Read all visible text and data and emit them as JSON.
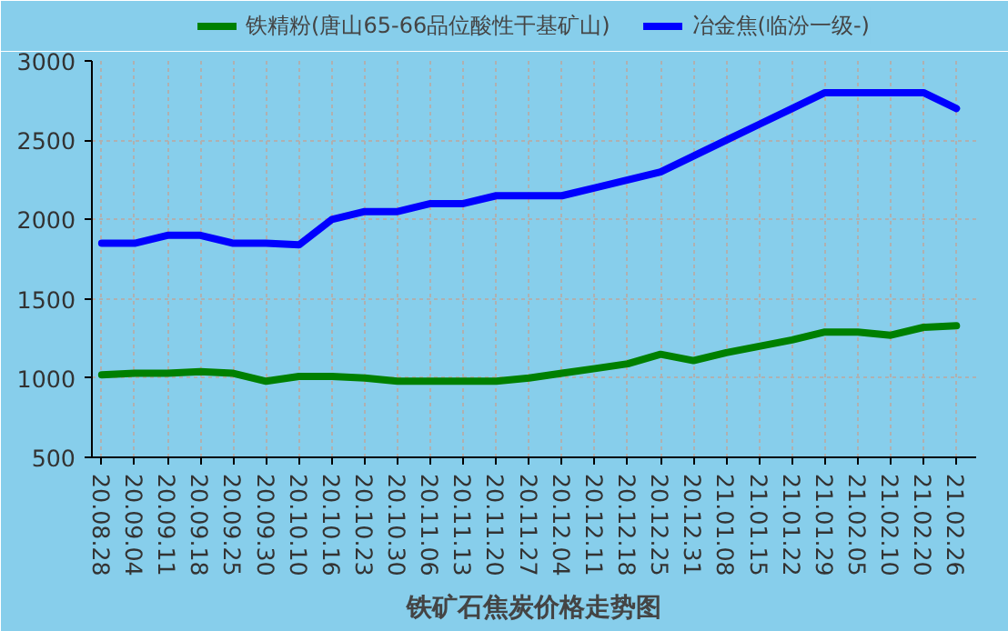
{
  "chart_data": {
    "type": "line",
    "title": "铁矿石焦炭价格走势图",
    "categories": [
      "20.08.28",
      "20.09.04",
      "20.09.11",
      "20.09.18",
      "20.09.25",
      "20.09.30",
      "20.10.10",
      "20.10.16",
      "20.10.23",
      "20.10.30",
      "20.11.06",
      "20.11.13",
      "20.11.20",
      "20.11.27",
      "20.12.04",
      "20.12.11",
      "20.12.18",
      "20.12.25",
      "20.12.31",
      "21.01.08",
      "21.01.15",
      "21.01.22",
      "21.01.29",
      "21.02.05",
      "21.02.10",
      "21.02.20",
      "21.02.26"
    ],
    "series": [
      {
        "name": "铁精粉(唐山65-66品位酸性干基矿山)",
        "color": "#008000",
        "values": [
          1020,
          1030,
          1030,
          1040,
          1030,
          980,
          1010,
          1010,
          1000,
          980,
          980,
          980,
          980,
          1000,
          1030,
          1060,
          1090,
          1150,
          1110,
          1160,
          1200,
          1240,
          1290,
          1290,
          1270,
          1320,
          1330
        ]
      },
      {
        "name": "冶金焦(临汾一级-)",
        "color": "#0000ff",
        "values": [
          1850,
          1850,
          1900,
          1900,
          1850,
          1850,
          1840,
          2000,
          2050,
          2050,
          2100,
          2100,
          2150,
          2150,
          2150,
          2200,
          2250,
          2300,
          2400,
          2500,
          2600,
          2700,
          2800,
          2800,
          2800,
          2800,
          2700
        ]
      }
    ],
    "ylim": [
      500,
      3000
    ],
    "yticks": [
      500,
      1000,
      1500,
      2000,
      2500,
      3000
    ],
    "grid": true,
    "legend": "top",
    "marker": "none",
    "line_style": "solid"
  }
}
